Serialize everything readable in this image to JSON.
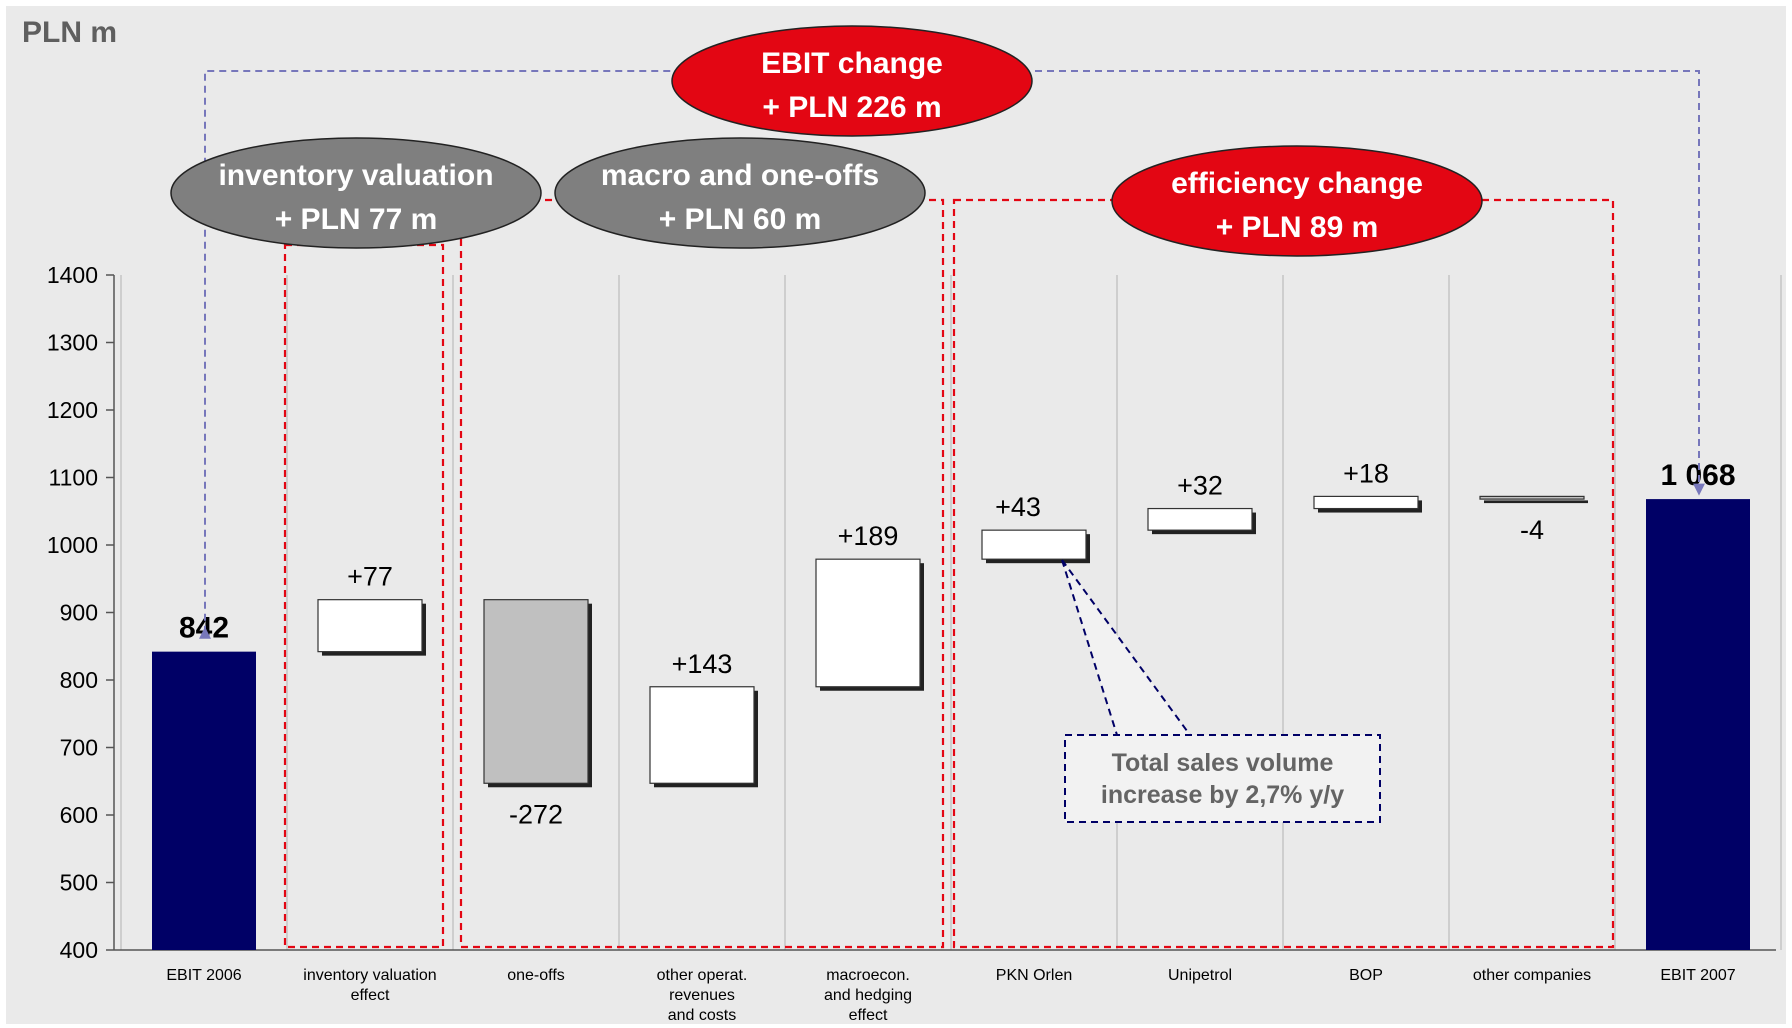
{
  "unit_label": "PLN m",
  "callout": {
    "line1": "Total sales volume",
    "line2": "increase by 2,7% y/y"
  },
  "groups": [
    {
      "key": "ebit_change",
      "line1": "EBIT change",
      "line2": "+ PLN 226 m",
      "color": "#e30613"
    },
    {
      "key": "inventory",
      "line1": "inventory valuation",
      "line2": "+ PLN 77 m",
      "color": "#7f7f7f"
    },
    {
      "key": "macro",
      "line1": "macro and one-offs",
      "line2": "+ PLN 60 m",
      "color": "#7f7f7f"
    },
    {
      "key": "efficiency",
      "line1": "efficiency change",
      "line2": "+ PLN 89 m",
      "color": "#e30613"
    }
  ],
  "colors": {
    "total_bar": "#000066",
    "negative_bar": "#c0c0c0",
    "positive_bar": "#ffffff",
    "group_border": "#e30613",
    "arrow": "#7777bb",
    "callout_border": "#000066"
  },
  "chart_data": {
    "type": "bar",
    "subtype": "waterfall",
    "ylim": [
      400,
      1400
    ],
    "yticks": [
      400,
      500,
      600,
      700,
      800,
      900,
      1000,
      1100,
      1200,
      1300,
      1400
    ],
    "categories": [
      [
        "EBIT 2006"
      ],
      [
        "inventory valuation",
        "effect"
      ],
      [
        "one-offs"
      ],
      [
        "other operat.",
        "revenues",
        "and costs"
      ],
      [
        "macroecon.",
        "and hedging",
        "effect"
      ],
      [
        "PKN Orlen"
      ],
      [
        "Unipetrol"
      ],
      [
        "BOP"
      ],
      [
        "other companies"
      ],
      [
        "EBIT 2007"
      ]
    ],
    "bars": [
      {
        "kind": "total",
        "start": 400,
        "end": 842,
        "label": "842"
      },
      {
        "kind": "delta",
        "start": 842,
        "end": 919,
        "label": "+77"
      },
      {
        "kind": "delta",
        "start": 919,
        "end": 647,
        "label": "-272"
      },
      {
        "kind": "delta",
        "start": 647,
        "end": 790,
        "label": "+143"
      },
      {
        "kind": "delta",
        "start": 790,
        "end": 979,
        "label": "+189"
      },
      {
        "kind": "delta",
        "start": 979,
        "end": 1022,
        "label": "+43"
      },
      {
        "kind": "delta",
        "start": 1022,
        "end": 1054,
        "label": "+32"
      },
      {
        "kind": "delta",
        "start": 1054,
        "end": 1072,
        "label": "+18"
      },
      {
        "kind": "delta",
        "start": 1072,
        "end": 1068,
        "label": "-4"
      },
      {
        "kind": "total",
        "start": 400,
        "end": 1068,
        "label": "1 068"
      }
    ],
    "grid": "vertical separators"
  }
}
